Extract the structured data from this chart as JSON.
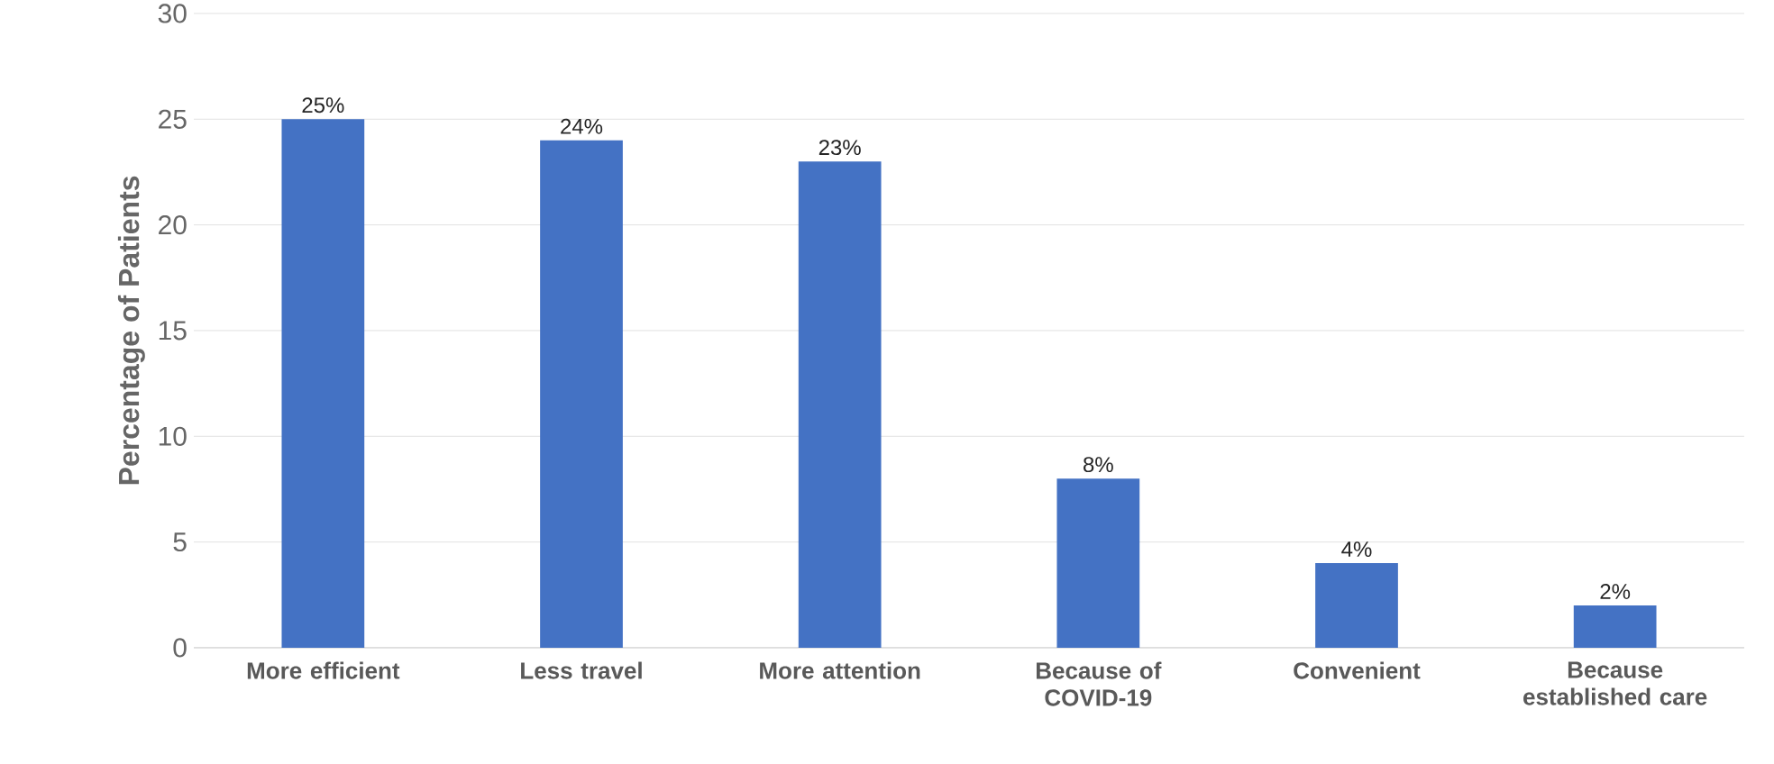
{
  "chart_data": {
    "type": "bar",
    "ylabel": "Percentage of Patients",
    "categories": [
      "More efficient",
      "Less travel",
      "More attention",
      "Because of COVID-19",
      "Convenient",
      "Because established care"
    ],
    "values": [
      25,
      24,
      23,
      8,
      4,
      2
    ],
    "value_labels": [
      "25%",
      "24%",
      "23%",
      "8%",
      "4%",
      "2%"
    ],
    "color": "#4472c4",
    "ylim": [
      0,
      30
    ],
    "yticks": [
      0,
      5,
      10,
      15,
      20,
      25,
      30
    ],
    "grid": "y"
  }
}
